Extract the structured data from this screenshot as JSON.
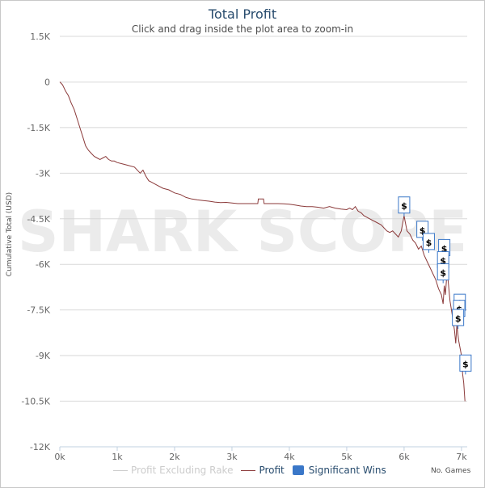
{
  "chart_data": {
    "type": "line",
    "title": "Total Profit",
    "subtitle": "Click and drag inside the plot area to zoom-in",
    "ylabel": "Cumulative Total (USD)",
    "xlabel": "No. Games",
    "watermark": "SHARK SCOPE",
    "xlim": [
      0,
      7100
    ],
    "ylim": [
      -12000,
      1500
    ],
    "xticks": [
      "0k",
      "1k",
      "2k",
      "3k",
      "4k",
      "5k",
      "6k",
      "7k"
    ],
    "xtick_values": [
      0,
      1000,
      2000,
      3000,
      4000,
      5000,
      6000,
      7000
    ],
    "yticks": [
      "1.5K",
      "0",
      "-1.5K",
      "-3K",
      "-4.5K",
      "-6K",
      "-7.5K",
      "-9K",
      "-10.5K",
      "-12K"
    ],
    "ytick_values": [
      1500,
      0,
      -1500,
      -3000,
      -4500,
      -6000,
      -7500,
      -9000,
      -10500,
      -12000
    ],
    "grid": true,
    "legend_position": "bottom",
    "series": [
      {
        "name": "Profit Excluding Rake",
        "color": "#cccccc",
        "x": [],
        "y": []
      },
      {
        "name": "Profit",
        "color": "#8b3a3a",
        "x": [
          0,
          50,
          100,
          150,
          200,
          250,
          300,
          350,
          400,
          450,
          500,
          550,
          600,
          650,
          700,
          750,
          800,
          850,
          900,
          950,
          1000,
          1100,
          1200,
          1300,
          1400,
          1450,
          1500,
          1550,
          1600,
          1700,
          1800,
          1900,
          2000,
          2100,
          2200,
          2300,
          2400,
          2500,
          2600,
          2700,
          2800,
          2900,
          3000,
          3100,
          3200,
          3300,
          3400,
          3450,
          3460,
          3500,
          3550,
          3560,
          3600,
          3700,
          3800,
          3900,
          4000,
          4100,
          4200,
          4300,
          4400,
          4500,
          4600,
          4700,
          4800,
          4900,
          5000,
          5050,
          5100,
          5150,
          5200,
          5250,
          5300,
          5400,
          5500,
          5600,
          5700,
          5750,
          5800,
          5850,
          5900,
          5950,
          6000,
          6020,
          6050,
          6100,
          6150,
          6200,
          6250,
          6300,
          6350,
          6400,
          6450,
          6500,
          6550,
          6600,
          6650,
          6680,
          6700,
          6720,
          6750,
          6800,
          6850,
          6880,
          6900,
          6920,
          6950,
          6980,
          7000,
          7020,
          7040,
          7060
        ],
        "y": [
          0,
          -100,
          -300,
          -450,
          -700,
          -900,
          -1200,
          -1500,
          -1800,
          -2100,
          -2250,
          -2350,
          -2450,
          -2500,
          -2550,
          -2500,
          -2450,
          -2550,
          -2600,
          -2600,
          -2650,
          -2700,
          -2750,
          -2800,
          -3000,
          -2900,
          -3100,
          -3250,
          -3300,
          -3400,
          -3500,
          -3550,
          -3650,
          -3700,
          -3800,
          -3850,
          -3880,
          -3900,
          -3920,
          -3950,
          -3970,
          -3960,
          -3980,
          -4000,
          -4000,
          -4000,
          -4000,
          -4000,
          -3850,
          -3850,
          -3850,
          -4000,
          -4000,
          -4000,
          -4000,
          -4010,
          -4020,
          -4050,
          -4080,
          -4100,
          -4100,
          -4120,
          -4150,
          -4100,
          -4150,
          -4180,
          -4200,
          -4150,
          -4200,
          -4100,
          -4250,
          -4300,
          -4400,
          -4500,
          -4600,
          -4700,
          -4900,
          -4950,
          -4900,
          -5000,
          -5100,
          -4900,
          -4400,
          -4600,
          -4900,
          -5000,
          -5200,
          -5300,
          -5500,
          -5400,
          -5700,
          -5900,
          -6100,
          -6300,
          -6500,
          -6800,
          -7000,
          -7300,
          -6700,
          -7000,
          -6200,
          -7200,
          -7800,
          -8200,
          -8600,
          -8000,
          -8500,
          -8800,
          -9000,
          -9600,
          -9900,
          -10500
        ]
      }
    ],
    "significant_wins": {
      "name": "Significant Wins",
      "color": "#3a77c8",
      "marker": "$",
      "x": [
        6000,
        6320,
        6430,
        6700,
        6680,
        6680,
        6970,
        6960,
        6940,
        7070
      ],
      "y": [
        -4100,
        -4900,
        -5300,
        -5500,
        -5900,
        -6300,
        -7300,
        -7500,
        -7800,
        -9300
      ]
    }
  }
}
